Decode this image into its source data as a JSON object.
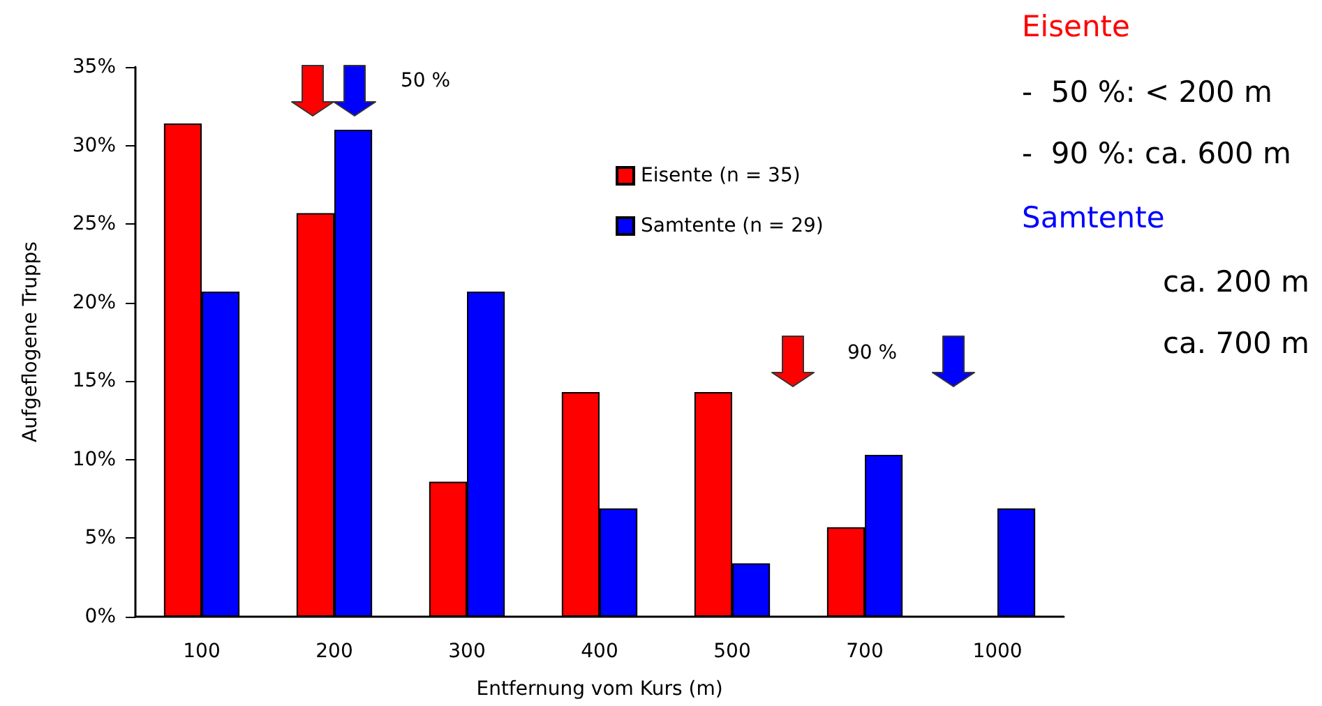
{
  "chart_data": {
    "type": "bar",
    "xlabel": "Entfernung vom Kurs (m)",
    "ylabel": "Aufgeflogene Trupps",
    "categories": [
      "100",
      "200",
      "300",
      "400",
      "500",
      "700",
      "1000"
    ],
    "series": [
      {
        "name": "Eisente (n = 35)",
        "color": "#ff0000",
        "values": [
          31.4,
          25.7,
          8.6,
          14.3,
          14.3,
          5.7,
          0
        ]
      },
      {
        "name": "Samtente (n = 29)",
        "color": "#0000ff",
        "values": [
          20.7,
          31.0,
          20.7,
          6.9,
          3.4,
          10.3,
          6.9
        ]
      }
    ],
    "ylim": [
      0,
      35
    ],
    "yticks": [
      {
        "value": 0,
        "label": "0%"
      },
      {
        "value": 5,
        "label": "5%"
      },
      {
        "value": 10,
        "label": "10%"
      },
      {
        "value": 15,
        "label": "15%"
      },
      {
        "value": 20,
        "label": "20%"
      },
      {
        "value": 25,
        "label": "25%"
      },
      {
        "value": 30,
        "label": "30%"
      },
      {
        "value": 35,
        "label": "35%"
      }
    ],
    "grid": false,
    "legend": "top right",
    "annotations": [
      "50 %",
      "90 %",
      "Eisente",
      "-  50 %: < 200 m",
      "-  90 %: ca. 600 m",
      "Samtente",
      "ca. 200 m",
      "ca. 700 m"
    ]
  }
}
